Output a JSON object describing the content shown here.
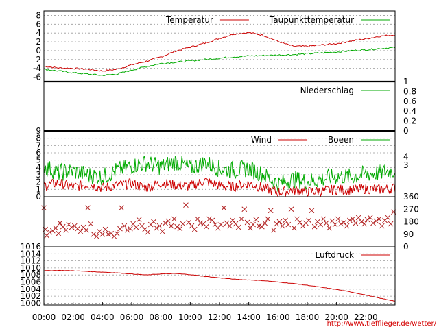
{
  "chart_data": [
    {
      "type": "line",
      "title": "",
      "xlabel": "",
      "ylabel": "",
      "ylim": [
        -7,
        9
      ],
      "yticks": [
        8,
        6,
        4,
        2,
        0,
        -2,
        -4,
        -6
      ],
      "ytick_labels": [
        "8",
        "6",
        "4",
        "2",
        "0",
        "-2",
        "-4",
        "-6"
      ],
      "legend_position": "top-right",
      "grid": true,
      "x_hours": [
        0,
        1,
        2,
        3,
        4,
        5,
        6,
        7,
        8,
        9,
        10,
        11,
        12,
        13,
        14,
        15,
        16,
        17,
        18,
        19,
        20,
        21,
        22,
        23,
        24
      ],
      "series": [
        {
          "name": "Temperatur",
          "color": "#cc0000",
          "values": [
            -3.5,
            -3.9,
            -4.0,
            -4.2,
            -4.6,
            -4.2,
            -3.2,
            -2.4,
            -1.4,
            -0.1,
            0.8,
            1.7,
            2.8,
            3.8,
            4.1,
            3.5,
            2.1,
            1.0,
            1.0,
            1.3,
            1.6,
            2.2,
            2.7,
            3.3,
            3.6
          ]
        },
        {
          "name": "Taupunkttemperatur",
          "color": "#00aa00",
          "values": [
            -4.2,
            -4.6,
            -5.0,
            -5.3,
            -5.6,
            -5.3,
            -4.4,
            -3.6,
            -2.9,
            -2.6,
            -2.3,
            -2.0,
            -1.7,
            -1.4,
            -1.2,
            -1.1,
            -1.0,
            -0.9,
            -0.7,
            -0.5,
            -0.3,
            0.0,
            0.2,
            0.5,
            0.7
          ]
        }
      ]
    },
    {
      "type": "line",
      "title": "",
      "ylim": [
        0,
        1
      ],
      "yticks": [
        1,
        0.8,
        0.6,
        0.4,
        0.2,
        0
      ],
      "ytick_labels": [
        "1",
        "0.8",
        "0.6",
        "0.4",
        "0.2",
        "0"
      ],
      "legend_position": "top-right",
      "series": [
        {
          "name": "Niederschlag",
          "color": "#00aa00",
          "values": [
            0,
            0,
            0,
            0,
            0,
            0,
            0,
            0,
            0,
            0,
            0,
            0,
            0,
            0,
            0,
            0,
            0,
            0,
            0,
            0,
            0,
            0,
            0,
            0,
            0
          ]
        }
      ]
    },
    {
      "type": "line",
      "title": "",
      "ylim": [
        0,
        9
      ],
      "yticks": [
        9,
        8,
        7,
        6,
        5,
        4,
        3,
        2,
        1,
        0
      ],
      "ytick_labels": [
        "9",
        "8",
        "7",
        "6",
        "5",
        "4",
        "3",
        "2",
        "1",
        "0"
      ],
      "y2_labels": [
        "4",
        "3"
      ],
      "legend_position": "top-right",
      "series": [
        {
          "name": "Wind",
          "color": "#cc0000",
          "values": [
            1.5,
            1.9,
            1.3,
            1.7,
            1.2,
            1.6,
            1.8,
            1.2,
            1.9,
            1.6,
            1.4,
            2.2,
            1.5,
            1.4,
            1.8,
            1.2,
            0.6,
            0.9,
            0.7,
            0.8,
            1.0,
            0.9,
            1.1,
            1.0,
            1.2
          ]
        },
        {
          "name": "Boeen",
          "color": "#00aa00",
          "values": [
            4.1,
            3.3,
            3.5,
            3.0,
            2.7,
            3.6,
            4.2,
            4.6,
            4.1,
            4.8,
            3.9,
            4.7,
            3.8,
            3.6,
            3.9,
            3.0,
            1.8,
            2.4,
            2.1,
            2.4,
            2.8,
            2.7,
            3.1,
            3.3,
            3.6
          ]
        }
      ]
    },
    {
      "type": "scatter",
      "title": "",
      "ylim": [
        0,
        360
      ],
      "y2_labels": [
        "360",
        "270",
        "180",
        "90",
        "0"
      ],
      "series": [
        {
          "name": "",
          "color": "#b22222",
          "points": [
            [
              0.0,
              280
            ],
            [
              0.1,
              125
            ],
            [
              0.2,
              80
            ],
            [
              0.4,
              105
            ],
            [
              0.6,
              115
            ],
            [
              0.8,
              135
            ],
            [
              1.0,
              95
            ],
            [
              1.1,
              170
            ],
            [
              1.3,
              145
            ],
            [
              1.5,
              120
            ],
            [
              1.7,
              160
            ],
            [
              1.9,
              140
            ],
            [
              2.1,
              150
            ],
            [
              2.3,
              130
            ],
            [
              2.5,
              110
            ],
            [
              2.7,
              140
            ],
            [
              2.9,
              120
            ],
            [
              3.0,
              280
            ],
            [
              3.2,
              165
            ],
            [
              3.4,
              90
            ],
            [
              3.6,
              75
            ],
            [
              3.8,
              110
            ],
            [
              4.0,
              90
            ],
            [
              4.2,
              125
            ],
            [
              4.4,
              90
            ],
            [
              4.6,
              95
            ],
            [
              4.8,
              75
            ],
            [
              5.0,
              95
            ],
            [
              5.2,
              130
            ],
            [
              5.3,
              280
            ],
            [
              5.5,
              150
            ],
            [
              5.7,
              120
            ],
            [
              5.9,
              130
            ],
            [
              6.1,
              165
            ],
            [
              6.3,
              140
            ],
            [
              6.5,
              195
            ],
            [
              6.7,
              150
            ],
            [
              6.9,
              125
            ],
            [
              7.1,
              105
            ],
            [
              7.3,
              160
            ],
            [
              7.5,
              180
            ],
            [
              7.7,
              135
            ],
            [
              7.9,
              150
            ],
            [
              8.1,
              110
            ],
            [
              8.3,
              170
            ],
            [
              8.5,
              185
            ],
            [
              8.7,
              150
            ],
            [
              8.9,
              200
            ],
            [
              9.1,
              145
            ],
            [
              9.3,
              130
            ],
            [
              9.5,
              165
            ],
            [
              9.7,
              300
            ],
            [
              9.9,
              175
            ],
            [
              10.1,
              150
            ],
            [
              10.3,
              125
            ],
            [
              10.5,
              200
            ],
            [
              10.7,
              170
            ],
            [
              10.9,
              165
            ],
            [
              11.1,
              145
            ],
            [
              11.3,
              200
            ],
            [
              11.5,
              190
            ],
            [
              11.7,
              160
            ],
            [
              11.9,
              135
            ],
            [
              12.1,
              160
            ],
            [
              12.3,
              280
            ],
            [
              12.5,
              170
            ],
            [
              12.7,
              150
            ],
            [
              12.9,
              190
            ],
            [
              13.1,
              165
            ],
            [
              13.3,
              140
            ],
            [
              13.5,
              200
            ],
            [
              13.7,
              270
            ],
            [
              13.9,
              175
            ],
            [
              14.1,
              135
            ],
            [
              14.3,
              160
            ],
            [
              14.5,
              195
            ],
            [
              14.7,
              150
            ],
            [
              14.9,
              145
            ],
            [
              15.1,
              170
            ],
            [
              15.3,
              200
            ],
            [
              15.5,
              260
            ],
            [
              15.7,
              120
            ],
            [
              15.9,
              165
            ],
            [
              16.1,
              180
            ],
            [
              16.3,
              150
            ],
            [
              16.5,
              190
            ],
            [
              16.7,
              160
            ],
            [
              16.9,
              270
            ],
            [
              17.1,
              135
            ],
            [
              17.3,
              200
            ],
            [
              17.5,
              175
            ],
            [
              17.7,
              150
            ],
            [
              17.9,
              170
            ],
            [
              18.1,
              190
            ],
            [
              18.3,
              260
            ],
            [
              18.5,
              145
            ],
            [
              18.7,
              180
            ],
            [
              18.9,
              160
            ],
            [
              19.1,
              200
            ],
            [
              19.3,
              170
            ],
            [
              19.5,
              135
            ],
            [
              19.7,
              185
            ],
            [
              19.9,
              160
            ],
            [
              20.1,
              200
            ],
            [
              20.3,
              165
            ],
            [
              20.5,
              175
            ],
            [
              20.7,
              150
            ],
            [
              20.9,
              190
            ],
            [
              21.1,
              200
            ],
            [
              21.3,
              170
            ],
            [
              21.5,
              210
            ],
            [
              21.7,
              180
            ],
            [
              21.9,
              165
            ],
            [
              22.1,
              195
            ],
            [
              22.3,
              210
            ],
            [
              22.5,
              170
            ],
            [
              22.7,
              185
            ],
            [
              22.9,
              200
            ],
            [
              23.1,
              150
            ],
            [
              23.3,
              190
            ],
            [
              23.5,
              210
            ],
            [
              23.7,
              165
            ],
            [
              23.9,
              250
            ]
          ]
        }
      ]
    },
    {
      "type": "line",
      "title": "",
      "ylim": [
        999.5,
        1016
      ],
      "yticks": [
        1016,
        1014,
        1012,
        1010,
        1008,
        1006,
        1004,
        1002,
        1000
      ],
      "ytick_labels": [
        "1016",
        "1014",
        "1012",
        "1010",
        "1008",
        "1006",
        "1004",
        "1002",
        "1000"
      ],
      "legend_position": "top-right",
      "series": [
        {
          "name": "Luftdruck",
          "color": "#cc0000",
          "values": [
            1009.2,
            1009.3,
            1009.2,
            1009.0,
            1008.8,
            1008.6,
            1008.3,
            1008.0,
            1008.3,
            1008.4,
            1008.1,
            1007.6,
            1007.2,
            1006.8,
            1006.6,
            1006.4,
            1006.0,
            1005.6,
            1005.1,
            1004.5,
            1003.9,
            1003.2,
            1002.3,
            1001.4,
            1000.6
          ]
        }
      ]
    }
  ],
  "x_axis": {
    "ticks": [
      0,
      2,
      4,
      6,
      8,
      10,
      12,
      14,
      16,
      18,
      20,
      22
    ],
    "labels": [
      "00:00",
      "02:00",
      "04:00",
      "06:00",
      "08:00",
      "10:00",
      "12:00",
      "14:00",
      "16:00",
      "18:00",
      "20:00",
      "22:00"
    ]
  },
  "credit": "http://www.tiefflieger.de/wetter/"
}
